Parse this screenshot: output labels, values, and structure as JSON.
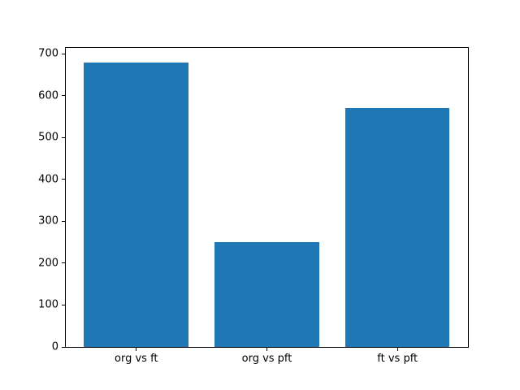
{
  "figure": {
    "background": "#ffffff",
    "text_color": "#000000",
    "spine_color": "#000000"
  },
  "chart_data": {
    "type": "bar",
    "title": "",
    "xlabel": "",
    "ylabel": "",
    "categories": [
      "org vs ft",
      "org vs pft",
      "ft vs pft"
    ],
    "values": [
      680,
      250,
      570
    ],
    "bar_color": "#1f77b4",
    "ylim": [
      0,
      714
    ],
    "yticks": [
      0,
      100,
      200,
      300,
      400,
      500,
      600,
      700
    ],
    "grid": false,
    "legend": null
  }
}
